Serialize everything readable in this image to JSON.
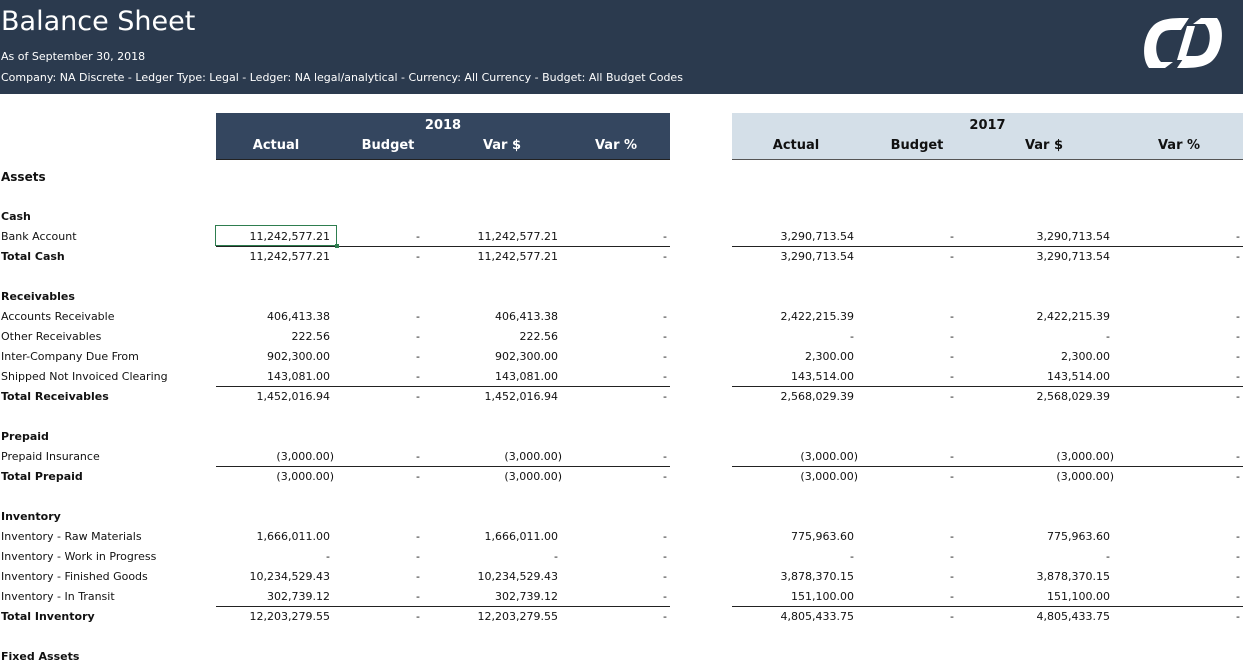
{
  "header": {
    "title": "Balance Sheet",
    "subtitle": "As of September 30, 2018",
    "filters": "Company: NA Discrete  - Ledger Type: Legal  - Ledger: NA legal/analytical - Currency: All Currency - Budget: All Budget Codes",
    "logo_icon": "company-logo-icon",
    "background": "#2b3a4e"
  },
  "periods": [
    {
      "year": "2018",
      "columns": [
        "Actual",
        "Budget",
        "Var $",
        "Var %"
      ],
      "color": "#34465f"
    },
    {
      "year": "2017",
      "columns": [
        "Actual",
        "Budget",
        "Var $",
        "Var %"
      ],
      "color": "#d4dfe8"
    }
  ],
  "group_label": "Assets",
  "sections": [
    {
      "name": "Cash",
      "rows": [
        {
          "label": "Bank Account",
          "y2018": [
            "11,242,577.21",
            "-",
            "11,242,577.21",
            "-"
          ],
          "y2017": [
            "3,290,713.54",
            "-",
            "3,290,713.54",
            "-"
          ]
        }
      ],
      "total": {
        "label": "Total Cash",
        "y2018": [
          "11,242,577.21",
          "-",
          "11,242,577.21",
          "-"
        ],
        "y2017": [
          "3,290,713.54",
          "-",
          "3,290,713.54",
          "-"
        ]
      }
    },
    {
      "name": "Receivables",
      "rows": [
        {
          "label": "Accounts Receivable",
          "y2018": [
            "406,413.38",
            "-",
            "406,413.38",
            "-"
          ],
          "y2017": [
            "2,422,215.39",
            "-",
            "2,422,215.39",
            "-"
          ]
        },
        {
          "label": "Other Receivables",
          "y2018": [
            "222.56",
            "-",
            "222.56",
            "-"
          ],
          "y2017": [
            "-",
            "-",
            "-",
            "-"
          ]
        },
        {
          "label": "Inter-Company Due From",
          "y2018": [
            "902,300.00",
            "-",
            "902,300.00",
            "-"
          ],
          "y2017": [
            "2,300.00",
            "-",
            "2,300.00",
            "-"
          ]
        },
        {
          "label": "Shipped Not Invoiced Clearing",
          "y2018": [
            "143,081.00",
            "-",
            "143,081.00",
            "-"
          ],
          "y2017": [
            "143,514.00",
            "-",
            "143,514.00",
            "-"
          ]
        }
      ],
      "total": {
        "label": "Total Receivables",
        "y2018": [
          "1,452,016.94",
          "-",
          "1,452,016.94",
          "-"
        ],
        "y2017": [
          "2,568,029.39",
          "-",
          "2,568,029.39",
          "-"
        ]
      }
    },
    {
      "name": "Prepaid",
      "rows": [
        {
          "label": "Prepaid Insurance",
          "y2018": [
            "(3,000.00)",
            "-",
            "(3,000.00)",
            "-"
          ],
          "y2017": [
            "(3,000.00)",
            "-",
            "(3,000.00)",
            "-"
          ]
        }
      ],
      "total": {
        "label": "Total Prepaid",
        "y2018": [
          "(3,000.00)",
          "-",
          "(3,000.00)",
          "-"
        ],
        "y2017": [
          "(3,000.00)",
          "-",
          "(3,000.00)",
          "-"
        ]
      }
    },
    {
      "name": "Inventory",
      "rows": [
        {
          "label": "Inventory - Raw Materials",
          "y2018": [
            "1,666,011.00",
            "-",
            "1,666,011.00",
            "-"
          ],
          "y2017": [
            "775,963.60",
            "-",
            "775,963.60",
            "-"
          ]
        },
        {
          "label": "Inventory - Work in Progress",
          "y2018": [
            "-",
            "-",
            "-",
            "-"
          ],
          "y2017": [
            "-",
            "-",
            "-",
            "-"
          ]
        },
        {
          "label": "Inventory - Finished Goods",
          "y2018": [
            "10,234,529.43",
            "-",
            "10,234,529.43",
            "-"
          ],
          "y2017": [
            "3,878,370.15",
            "-",
            "3,878,370.15",
            "-"
          ]
        },
        {
          "label": "Inventory - In Transit",
          "y2018": [
            "302,739.12",
            "-",
            "302,739.12",
            "-"
          ],
          "y2017": [
            "151,100.00",
            "-",
            "151,100.00",
            "-"
          ]
        }
      ],
      "total": {
        "label": "Total Inventory",
        "y2018": [
          "12,203,279.55",
          "-",
          "12,203,279.55",
          "-"
        ],
        "y2017": [
          "4,805,433.75",
          "-",
          "4,805,433.75",
          "-"
        ]
      }
    }
  ],
  "trailing_section": "Fixed Assets"
}
